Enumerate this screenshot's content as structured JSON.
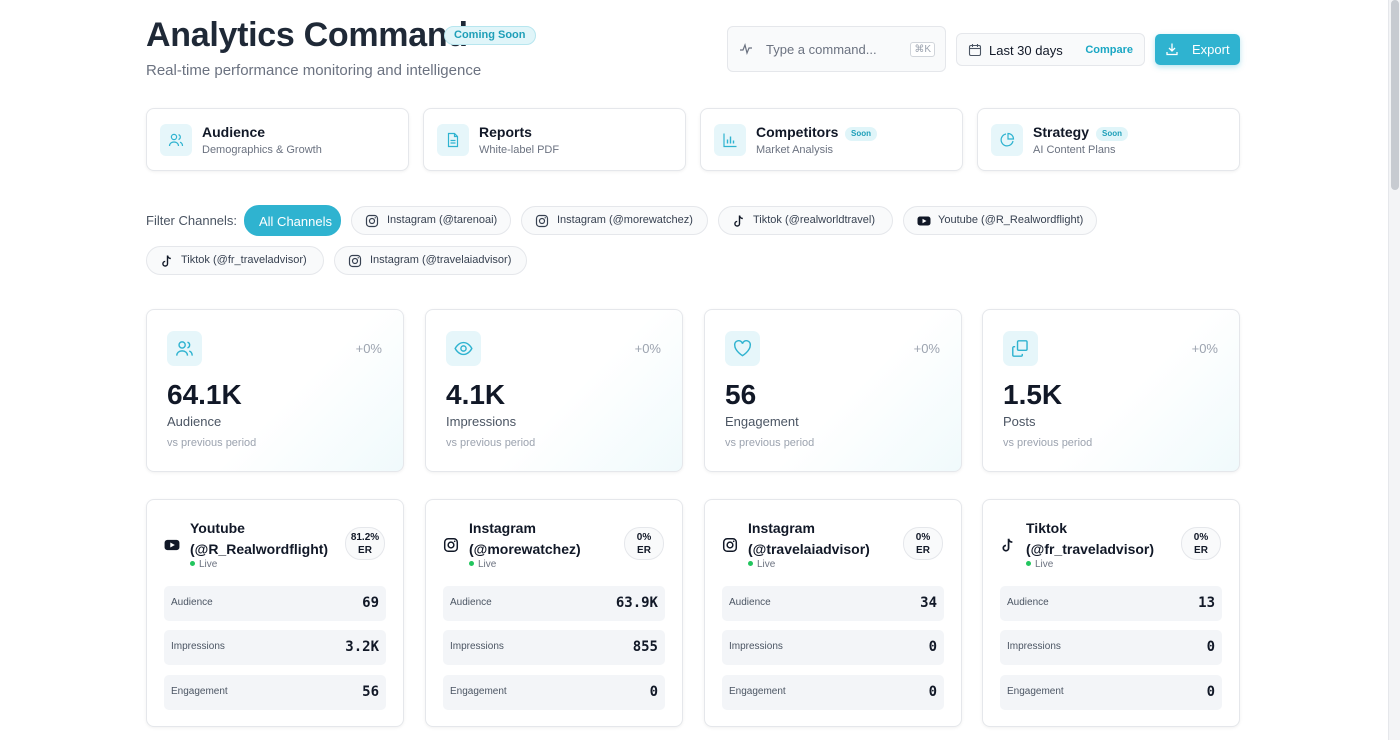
{
  "header": {
    "title": "Analytics Command",
    "badge": "Coming Soon",
    "subtitle": "Real-time performance monitoring and intelligence",
    "command_placeholder": "Type a command...",
    "command_shortcut": "⌘K",
    "date_range": "Last 30 days",
    "compare_label": "Compare",
    "export_label": "Export"
  },
  "nav_cards": [
    {
      "title": "Audience",
      "subtitle": "Demographics & Growth",
      "badge": "",
      "icon": "users-icon"
    },
    {
      "title": "Reports",
      "subtitle": "White-label PDF",
      "badge": "",
      "icon": "document-icon"
    },
    {
      "title": "Competitors",
      "subtitle": "Market Analysis",
      "badge": "Soon",
      "icon": "bar-chart-icon"
    },
    {
      "title": "Strategy",
      "subtitle": "AI Content Plans",
      "badge": "Soon",
      "icon": "pie-chart-icon"
    }
  ],
  "filters": {
    "label": "Filter Channels:",
    "chips": [
      {
        "label": "All Channels",
        "active": true,
        "icon": ""
      },
      {
        "label": "Instagram (@tarenoai)",
        "active": false,
        "icon": "instagram-icon"
      },
      {
        "label": "Instagram (@morewatchez)",
        "active": false,
        "icon": "instagram-icon"
      },
      {
        "label": "Tiktok (@realworldtravel)",
        "active": false,
        "icon": "tiktok-icon"
      },
      {
        "label": "Youtube (@R_Realwordflight)",
        "active": false,
        "icon": "youtube-icon"
      },
      {
        "label": "Tiktok (@fr_traveladvisor)",
        "active": false,
        "icon": "tiktok-icon"
      },
      {
        "label": "Instagram (@travelaiadvisor)",
        "active": false,
        "icon": "instagram-icon"
      }
    ]
  },
  "metrics": [
    {
      "value": "64.1K",
      "label": "Audience",
      "delta": "+0%",
      "compare": "vs previous period",
      "icon": "users-icon"
    },
    {
      "value": "4.1K",
      "label": "Impressions",
      "delta": "+0%",
      "compare": "vs previous period",
      "icon": "eye-icon"
    },
    {
      "value": "56",
      "label": "Engagement",
      "delta": "+0%",
      "compare": "vs previous period",
      "icon": "heart-icon"
    },
    {
      "value": "1.5K",
      "label": "Posts",
      "delta": "+0%",
      "compare": "vs previous period",
      "icon": "copy-icon"
    }
  ],
  "channels": [
    {
      "platform": "Youtube",
      "handle": "(@R_Realwordflight)",
      "er_value": "81.2%",
      "er_label": "ER",
      "status": "Live",
      "icon": "youtube-icon",
      "stats": [
        {
          "label": "Audience",
          "value": "69"
        },
        {
          "label": "Impressions",
          "value": "3.2K"
        },
        {
          "label": "Engagement",
          "value": "56"
        }
      ]
    },
    {
      "platform": "Instagram",
      "handle": "(@morewatchez)",
      "er_value": "0%",
      "er_label": "ER",
      "status": "Live",
      "icon": "instagram-icon",
      "stats": [
        {
          "label": "Audience",
          "value": "63.9K"
        },
        {
          "label": "Impressions",
          "value": "855"
        },
        {
          "label": "Engagement",
          "value": "0"
        }
      ]
    },
    {
      "platform": "Instagram",
      "handle": "(@travelaiadvisor)",
      "er_value": "0%",
      "er_label": "ER",
      "status": "Live",
      "icon": "instagram-icon",
      "stats": [
        {
          "label": "Audience",
          "value": "34"
        },
        {
          "label": "Impressions",
          "value": "0"
        },
        {
          "label": "Engagement",
          "value": "0"
        }
      ]
    },
    {
      "platform": "Tiktok",
      "handle": "(@fr_traveladvisor)",
      "er_value": "0%",
      "er_label": "ER",
      "status": "Live",
      "icon": "tiktok-icon",
      "stats": [
        {
          "label": "Audience",
          "value": "13"
        },
        {
          "label": "Impressions",
          "value": "0"
        },
        {
          "label": "Engagement",
          "value": "0"
        }
      ]
    }
  ],
  "colors": {
    "accent": "#2fb3d0",
    "accent_light": "#e6f6fa",
    "live": "#22c55e"
  }
}
